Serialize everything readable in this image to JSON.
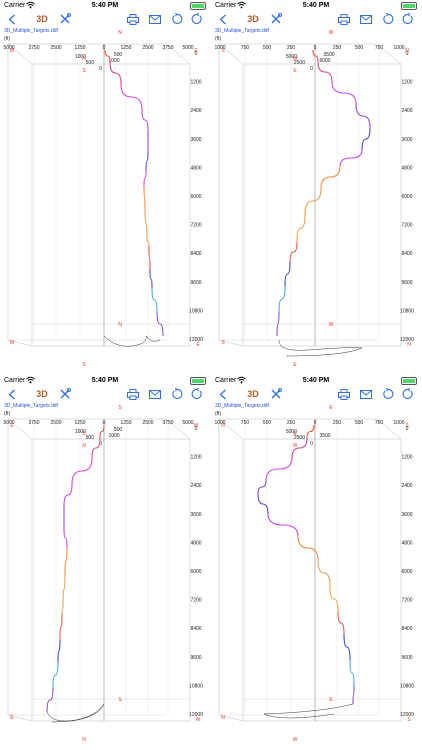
{
  "status": {
    "carrier": "Carrier",
    "time": "5:40 PM"
  },
  "toolbar": {
    "view_label": "3D"
  },
  "file": "3D_Multiple_Targets.ddf",
  "unit": "(ft)",
  "accent": "#2f6fe0",
  "depth_ticks": [
    "0",
    "1200",
    "2400",
    "3600",
    "4800",
    "6000",
    "7200",
    "8400",
    "9600",
    "10800",
    "12000"
  ],
  "panels": [
    {
      "x_ticks": [
        "5000",
        "3750",
        "2500",
        "1250",
        "0",
        "1250",
        "2500",
        "3750",
        "5000"
      ],
      "y_ticks": [
        "1000",
        "500"
      ],
      "z_ticks": [
        "1000",
        "500",
        "0"
      ],
      "compass": {
        "top_left": "W",
        "top_right": "E",
        "top_mid": "N",
        "mid_n": "N",
        "mid_s": "S",
        "bot_left": "W",
        "bot_right": "E",
        "bot_mid": "N",
        "bot_s": "S"
      }
    },
    {
      "x_ticks": [
        "1000",
        "750",
        "500",
        "250",
        "0",
        "250",
        "500",
        "750",
        "1000"
      ],
      "y_ticks": [
        "6000",
        "3500"
      ],
      "z_ticks": [
        "5000",
        "2500",
        "0"
      ],
      "compass": {
        "top_left": "S",
        "top_right": "N",
        "top_mid": "W",
        "mid_n": "W",
        "mid_s": "E",
        "bot_left": "S",
        "bot_right": "N",
        "bot_mid": "W",
        "bot_s": "E"
      }
    },
    {
      "x_ticks": [
        "5000",
        "3750",
        "2500",
        "1250",
        "0",
        "1250",
        "2500",
        "3750",
        "5000"
      ],
      "y_ticks": [
        "1000",
        "500"
      ],
      "z_ticks": [
        "1000",
        "500",
        "0"
      ],
      "compass": {
        "top_left": "E",
        "top_right": "W",
        "top_mid": "S",
        "mid_n": "S",
        "mid_s": "N",
        "bot_left": "E",
        "bot_right": "W",
        "bot_mid": "S",
        "bot_s": "N"
      }
    },
    {
      "x_ticks": [
        "1000",
        "750",
        "500",
        "250",
        "0",
        "250",
        "500",
        "750",
        "1000"
      ],
      "y_ticks": [
        "3500"
      ],
      "z_ticks": [
        "5000",
        "2500",
        "0"
      ],
      "compass": {
        "top_left": "N",
        "top_right": "S",
        "top_mid": "E",
        "mid_n": "E",
        "mid_s": "W",
        "bot_left": "N",
        "bot_right": "S",
        "bot_mid": "E",
        "bot_s": "W"
      }
    }
  ]
}
